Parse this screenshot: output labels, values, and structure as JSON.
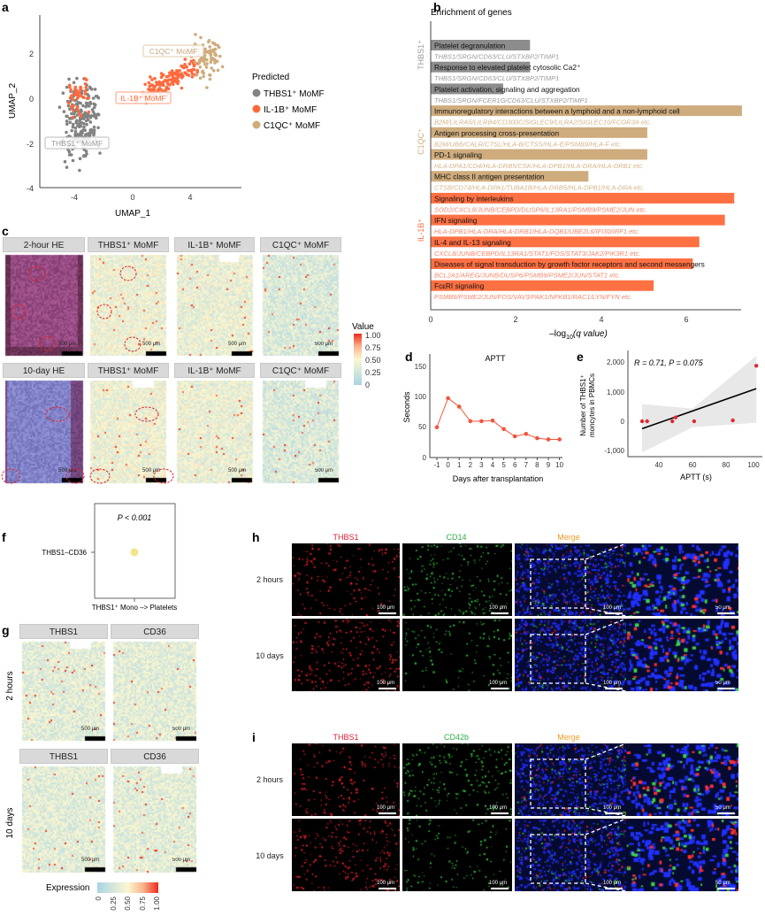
{
  "panel_labels": {
    "a": "a",
    "b": "b",
    "c": "c",
    "d": "d",
    "e": "e",
    "f": "f",
    "g": "g",
    "h": "h",
    "i": "i"
  },
  "colors": {
    "thbs1": "#828282",
    "il1b": "#ff6a3d",
    "c1qc": "#cfac7d",
    "line": "#f4533c"
  },
  "panel_a": {
    "xlabel": "UMAP_1",
    "ylabel": "UMAP_2",
    "xticks": [
      "-4",
      "0",
      "4"
    ],
    "yticks": [
      "2",
      "0",
      "-2",
      "-4"
    ],
    "legend_title": "Predicted",
    "legend": [
      "THBS1⁺ MoMF",
      "IL-1B⁺ MoMF",
      "C1QC⁺ MoMF"
    ],
    "cluster_labels": [
      "THBS1⁺ MoMF",
      "IL-1B⁺ MoMF",
      "C1QC⁺ MoMF"
    ]
  },
  "panel_b": {
    "title": "Enrichment of genes",
    "xlabel_pre": "–log",
    "xlabel_sub": "10",
    "xlabel_post": "(q value)",
    "xticks": [
      "0",
      "2",
      "4",
      "6"
    ],
    "groups": [
      "THBS1⁺",
      "C1QC⁺",
      "IL-1B⁺"
    ]
  },
  "panel_c": {
    "top_headers": [
      "2-hour HE",
      "THBS1⁺ MoMF",
      "IL-1B⁺ MoMF",
      "C1QC⁺ MoMF"
    ],
    "bottom_headers": [
      "10-day HE",
      "THBS1⁺ MoMF",
      "IL-1B⁺ MoMF",
      "C1QC⁺ MoMF"
    ],
    "scalebar": "500 μm",
    "colorbar_title": "Value",
    "colorbar_ticks": [
      "1.00",
      "0.75",
      "0.50",
      "0.25",
      "0"
    ]
  },
  "panel_d": {
    "title": "APTT",
    "ylabel": "Seconds",
    "xlabel": "Days after transplantation",
    "yticks": [
      "0",
      "50",
      "100",
      "150"
    ],
    "xticks": [
      "-1",
      "0",
      "1",
      "2",
      "3",
      "4",
      "5",
      "6",
      "7",
      "8",
      "9",
      "10"
    ]
  },
  "panel_e": {
    "annotation": "R = 0.71, P = 0.075",
    "ylabel1": "Number of THBS1⁺",
    "ylabel2": "moncytes in PBMCs",
    "xlabel": "APTT (s)",
    "yticks": [
      "2,000",
      "1,000",
      "0",
      "-1,000"
    ],
    "xticks": [
      "40",
      "60",
      "80",
      "100"
    ]
  },
  "panel_f": {
    "pvalue": "P < 0.001",
    "ylabel": "THBS1–CD36",
    "xlabel": "THBS1⁺ Mono –> Platelets"
  },
  "panel_g": {
    "headers": [
      "THBS1",
      "CD36"
    ],
    "rows": [
      "2 hours",
      "10 days"
    ],
    "scalebar": "500 μm",
    "colorbar_title": "Expression",
    "colorbar_ticks": [
      "0",
      "0.25",
      "0.50",
      "0.75",
      "1.00"
    ]
  },
  "panel_h": {
    "headers": [
      "THBS1",
      "CD14",
      "Merge"
    ],
    "rows": [
      "2 hours",
      "10 days"
    ],
    "scalebar": "100 μm",
    "zoom_scalebar": "50 μm"
  },
  "panel_i": {
    "headers": [
      "THBS1",
      "CD42b",
      "Merge"
    ],
    "rows": [
      "2 hours",
      "10 days"
    ],
    "scalebar": "100 μm",
    "zoom_scalebar": "50 μm"
  },
  "chart_data": [
    {
      "id": "a",
      "type": "scatter",
      "title": "",
      "xlabel": "UMAP_1",
      "ylabel": "UMAP_2",
      "xlim": [
        -6.5,
        7.5
      ],
      "ylim": [
        -4,
        3.5
      ],
      "series": [
        {
          "name": "THBS1⁺ MoMF",
          "color": "#828282",
          "clusters": [
            {
              "center": [
                -3.6,
                -1.1
              ],
              "spread": [
                1.8,
                2.5
              ],
              "n": 210
            }
          ]
        },
        {
          "name": "IL-1B⁺ MoMF",
          "color": "#ff6a3d",
          "clusters": [
            {
              "center": [
                -3.8,
                0.2
              ],
              "spread": [
                1.6,
                1.4
              ],
              "n": 40
            },
            {
              "center": [
                2.5,
                0.8
              ],
              "spread": [
                3.3,
                1.4
              ],
              "n": 150
            }
          ]
        },
        {
          "name": "C1QC⁺ MoMF",
          "color": "#cfac7d",
          "clusters": [
            {
              "center": [
                5.2,
                1.8
              ],
              "spread": [
                1.5,
                1.4
              ],
              "n": 85
            }
          ]
        }
      ]
    },
    {
      "id": "b",
      "type": "bar",
      "orientation": "horizontal",
      "xlabel": "–log10(q value)",
      "xlim": [
        0,
        7.5
      ],
      "terms": [
        {
          "term": "Platelet degranulation",
          "genes": "THBS1/SRGN/CD63/CLU/STXBP2/TIMP1",
          "value": 2.33,
          "group": 0
        },
        {
          "term": "Response to elevated platelet cytosolic Ca2⁺",
          "genes": "THBS1/SRGN/CD63/CLU/STXBP2/TIMP1",
          "value": 2.33,
          "group": 0
        },
        {
          "term": "Platelet activation, signaling and aggregation",
          "genes": "THBS1/SRGN/FCER1G/CD63/CLU/STXBP2/TIMP1",
          "value": 1.7,
          "group": 0
        },
        {
          "term": "Immunoregulatory interactions between a lymphoid and a non-lymphoid cell",
          "genes": "B2M/LILRA5/LILRB4/CD300C/SIGLEC9/LILRA2/SIGLEC10/FCGR3A etc.",
          "value": 7.3,
          "group": 1
        },
        {
          "term": "Antigen processing cross-presentation",
          "genes": "B2M/UBB/CALR/CTSL/HLA-B/CTSS/HLA-E/PSMB9/HLA-F etc.",
          "value": 5.08,
          "group": 1
        },
        {
          "term": "PD-1 signaling",
          "genes": "HLA-DPA1/CD4/HLA-DRB5/CSK/HLA-DPB1/HLA-DRA/HLA-DRB1 etc.",
          "value": 5.08,
          "group": 1
        },
        {
          "term": "MHC class II antigen presentation",
          "genes": "CTSB/CD74/HLA-DPA1/TUBA1B/HLA-DRB5/HLA-DPB1/HLA-DRA etc.",
          "value": 3.7,
          "group": 1
        },
        {
          "term": "Signaling by interleukins",
          "genes": "SOD2/CXCL8/JUNB/CEBPD/DUSP6/IL13RA1/PSMB9/PSME2/JUN etc.",
          "value": 7.12,
          "group": 2
        },
        {
          "term": "IFN signaling",
          "genes": "HLA-DPB1/HLA-DRA/HLA-DRB1/HLA-DQB1/UBE2L6/IFI30/IRF1 etc.",
          "value": 6.9,
          "group": 2
        },
        {
          "term": "IL-4 and IL-13 signaling",
          "genes": "CXCL8/JUNB/CEBPD/IL13RA1/STAT1/FOS/STAT3/JAK2/PIK3R1 etc.",
          "value": 6.3,
          "group": 2
        },
        {
          "term": "Diseases of signal transduction by growth factor receptors and second messengers",
          "genes": "BCL2A1/AREG/JUNB/DUSP6/PSMB9/PSME2/JUN/STAT1 etc.",
          "value": 6.15,
          "group": 2
        },
        {
          "term": "FcεRI signaling",
          "genes": "PSMB9/PSME2/JUN/FOS/VAV3/PAK1/NFKB1/RAC1/LYN/FYN etc.",
          "value": 5.23,
          "group": 2
        }
      ],
      "group_colors": [
        "#8c8c8c",
        "#cfac7d",
        "#ff7043"
      ],
      "gene_colors": [
        "#9a9a9a",
        "#d6b288",
        "#f7866a"
      ]
    },
    {
      "id": "d",
      "type": "line",
      "title": "APTT",
      "xlabel": "Days after transplantation",
      "ylabel": "Seconds",
      "ylim": [
        0,
        150
      ],
      "xlim": [
        -1,
        10
      ],
      "x": [
        -1,
        0,
        1,
        2,
        3,
        4,
        5,
        6,
        7,
        8,
        9,
        10
      ],
      "y": [
        50,
        98,
        84,
        60,
        60,
        61,
        47,
        35,
        39,
        32,
        30,
        30
      ]
    },
    {
      "id": "e",
      "type": "scatter",
      "xlabel": "APTT (s)",
      "ylabel": "Number of THBS1⁺ moncytes in PBMCs",
      "xlim": [
        25,
        100
      ],
      "ylim": [
        -1200,
        2300
      ],
      "x": [
        30,
        33,
        48,
        50,
        61,
        84,
        98
      ],
      "y": [
        0,
        0,
        0,
        130,
        0,
        30,
        1870
      ],
      "fit": {
        "x": [
          30,
          98
        ],
        "y": [
          -250,
          1100
        ]
      },
      "ci_band": {
        "x": [
          30,
          60,
          98
        ],
        "lower": [
          -1050,
          -200,
          -50
        ],
        "upper": [
          580,
          430,
          2200
        ]
      },
      "annotation": "R = 0.71, P = 0.075"
    },
    {
      "id": "f",
      "type": "scatter",
      "xlabel": "THBS1⁺ Mono –> Platelets",
      "categories_y": [
        "THBS1–CD36"
      ],
      "pvalue": "P < 0.001",
      "color": "#f0e68c"
    }
  ]
}
